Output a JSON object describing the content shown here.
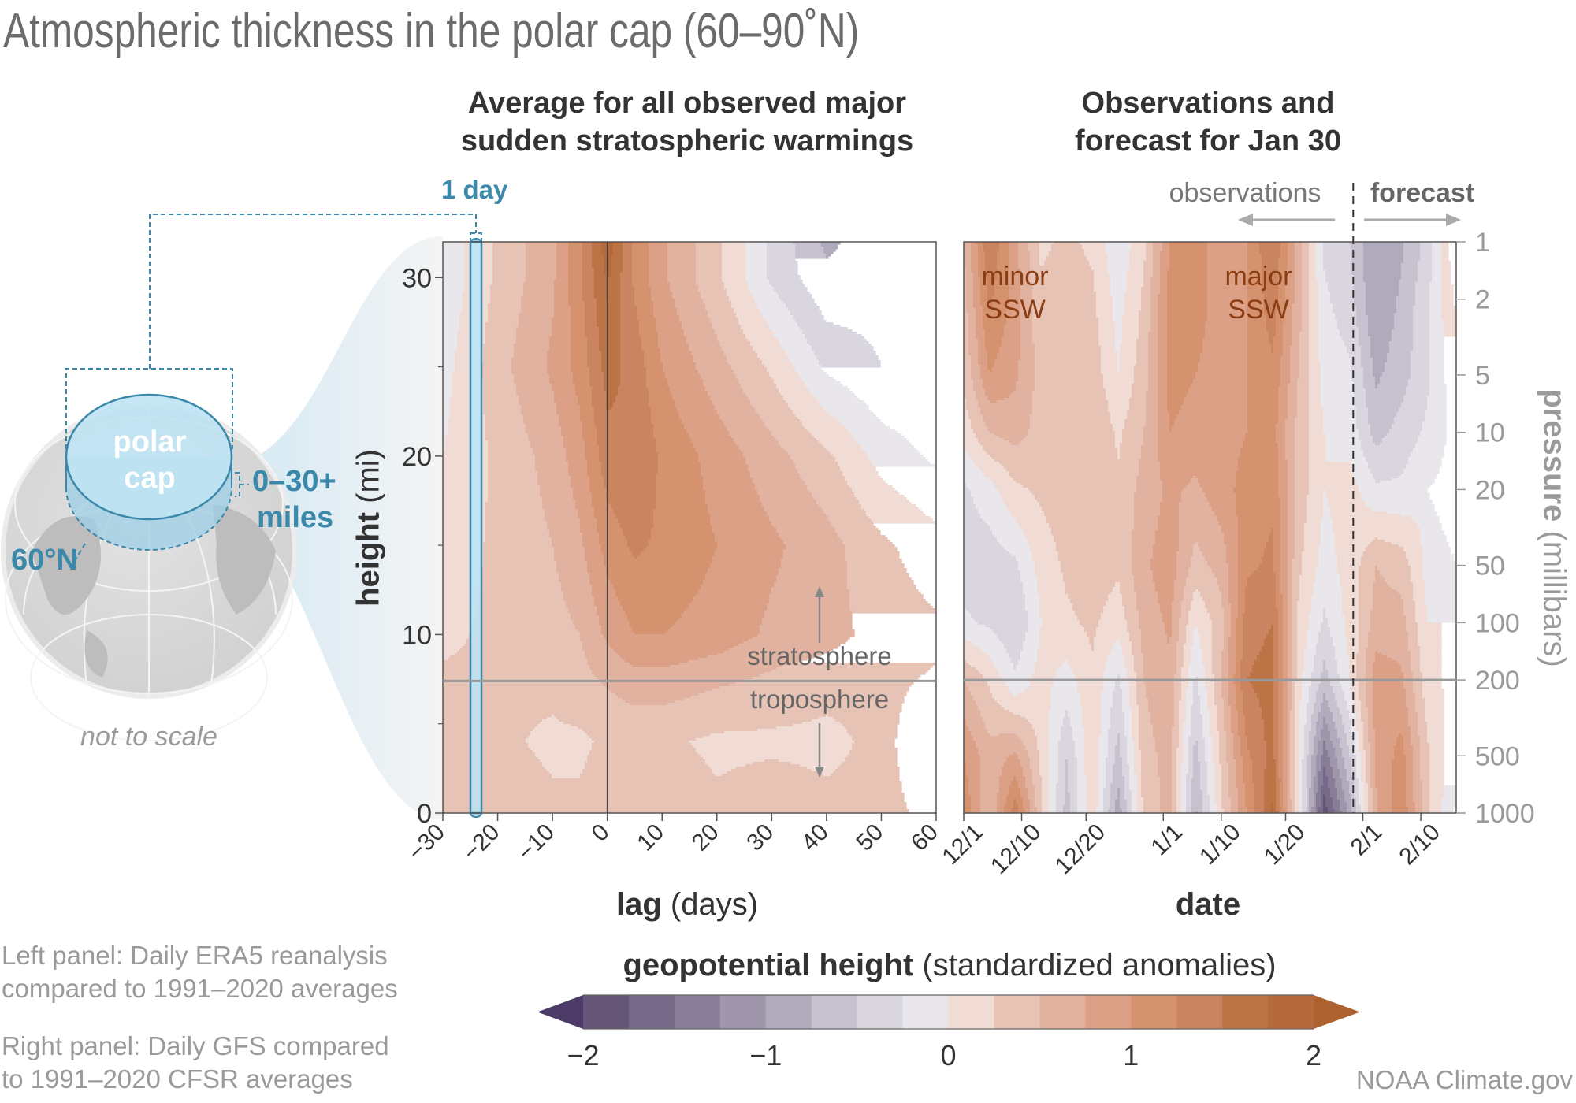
{
  "title": "Atmospheric thickness in the polar cap (60–90˚N)",
  "left_panel_title": [
    "Average for all observed major",
    "sudden stratospheric warmings"
  ],
  "right_panel_title": [
    "Observations and",
    "forecast for Jan 30"
  ],
  "diagram": {
    "one_day": "1 day",
    "polar_cap": [
      "polar",
      "cap"
    ],
    "height_range": [
      "0–30+",
      "miles"
    ],
    "latitude": "60°N",
    "not_to_scale": "not to scale"
  },
  "annotations": {
    "observations": "observations",
    "forecast": "forecast",
    "stratosphere": "stratosphere",
    "troposphere": "troposphere",
    "minor_ssw": [
      "minor",
      "SSW"
    ],
    "major_ssw": [
      "major",
      "SSW"
    ]
  },
  "footnotes": {
    "left": [
      "Left panel: Daily ERA5 reanalysis",
      "compared to 1991–2020 averages"
    ],
    "right": [
      "Right panel: Daily GFS compared",
      "to 1991–2020 CFSR averages"
    ],
    "credit": "NOAA Climate.gov"
  },
  "colorbar": {
    "title_bold": "geopotential height",
    "title_rest": " (standardized anomalies)",
    "ticks": [
      "−2",
      "−1",
      "0",
      "1",
      "2"
    ],
    "tick_values": [
      -2,
      -1,
      0,
      1,
      2
    ],
    "range": [
      -2,
      2
    ],
    "step": 0.25,
    "colors": [
      "#655577",
      "#766a88",
      "#877d97",
      "#9f96ab",
      "#b0aabd",
      "#c8c1cf",
      "#d9d6e0",
      "#e9e7ec",
      "#f0dcd5",
      "#e6c3b5",
      "#e0b29f",
      "#dba086",
      "#d5926f",
      "#ca8560",
      "#bc7346",
      "#b66a3b"
    ],
    "under_color": "#4b3b66",
    "over_color": "#ad6230"
  },
  "chart_data": [
    {
      "type": "heatmap",
      "title": "Average for all observed major sudden stratospheric warmings",
      "xlabel_bold": "lag",
      "xlabel_rest": " (days)",
      "ylabel_bold": "height",
      "ylabel_rest": " (mi)",
      "xlim": [
        -30,
        60
      ],
      "ylim": [
        0,
        32
      ],
      "xticks": [
        -30,
        -20,
        -10,
        0,
        10,
        20,
        30,
        40,
        50,
        60
      ],
      "xtick_labels": [
        "−30",
        "−20",
        "−10",
        "0",
        "10",
        "20",
        "30",
        "40",
        "50",
        "60"
      ],
      "yticks": [
        0,
        10,
        20,
        30
      ],
      "ytick_labels": [
        "0",
        "10",
        "20",
        "30"
      ],
      "tropopause_height": 7.4,
      "x": [
        -30,
        -20,
        -10,
        -5,
        0,
        5,
        10,
        20,
        30,
        40,
        50,
        60
      ],
      "y": [
        0,
        4,
        7,
        10,
        15,
        20,
        25,
        30,
        32
      ],
      "z": [
        [
          0.5,
          0.4,
          0.3,
          0.3,
          0.4,
          0.4,
          0.4,
          0.3,
          0.4,
          0.3,
          0.3,
          0.2
        ],
        [
          0.3,
          0.3,
          0.2,
          0.2,
          0.3,
          0.3,
          0.3,
          0.2,
          0.2,
          0.2,
          0.3,
          0.1
        ],
        [
          0.3,
          0.3,
          0.3,
          0.4,
          0.5,
          0.6,
          0.6,
          0.5,
          0.4,
          0.3,
          0.3,
          0.2
        ],
        [
          0.2,
          0.3,
          0.4,
          0.5,
          0.8,
          1.0,
          1.0,
          0.9,
          0.7,
          0.6,
          0.4,
          0.3
        ],
        [
          0.1,
          0.3,
          0.5,
          0.7,
          1.1,
          1.3,
          1.2,
          1.0,
          0.8,
          0.6,
          0.3,
          0.1
        ],
        [
          0.0,
          0.3,
          0.6,
          0.9,
          1.4,
          1.5,
          1.2,
          0.9,
          0.6,
          0.3,
          -0.1,
          -0.3
        ],
        [
          -0.1,
          0.4,
          0.8,
          1.1,
          1.6,
          1.4,
          1.0,
          0.6,
          0.2,
          -0.3,
          -0.5,
          -0.5
        ],
        [
          -0.2,
          0.3,
          0.7,
          1.2,
          1.8,
          1.2,
          0.8,
          0.3,
          -0.3,
          -0.7,
          -0.6,
          -0.5
        ],
        [
          -0.2,
          0.3,
          0.7,
          1.2,
          1.9,
          1.2,
          0.8,
          0.3,
          -0.3,
          -0.8,
          -0.6,
          -0.5
        ]
      ]
    },
    {
      "type": "heatmap",
      "title": "Observations and forecast for Jan 30",
      "xlabel_bold": "date",
      "ylabel": "pressure (millibars)",
      "ylabel_bold": "pressure",
      "ylabel_rest": " (millibars)",
      "x_units": "days since 12/1",
      "xlim": [
        0,
        76.5
      ],
      "ylim": [
        1000,
        1
      ],
      "y_scale": "log",
      "xticks": [
        0,
        9,
        19,
        31,
        40,
        50,
        62,
        71
      ],
      "xtick_labels": [
        "12/1",
        "12/10",
        "12/20",
        "1/1",
        "1/10",
        "1/20",
        "2/1",
        "2/10"
      ],
      "yticks": [
        1,
        2,
        5,
        10,
        20,
        50,
        100,
        200,
        500,
        1000
      ],
      "ytick_labels": [
        "1",
        "2",
        "5",
        "10",
        "20",
        "50",
        "100",
        "200",
        "500",
        "1000"
      ],
      "tropopause_pressure": 200,
      "forecast_start": 60.5,
      "x": [
        0,
        4,
        8,
        12,
        16,
        20,
        24,
        28,
        32,
        36,
        40,
        44,
        48,
        52,
        56,
        60,
        64,
        68,
        72,
        76.5
      ],
      "y": [
        1,
        2,
        5,
        10,
        20,
        50,
        100,
        200,
        500,
        1000
      ],
      "z": [
        [
          0.5,
          1.5,
          0.8,
          0.2,
          0.3,
          0.2,
          -0.2,
          0.2,
          1.0,
          1.2,
          0.8,
          1.0,
          1.5,
          0.6,
          -0.3,
          -0.5,
          -1.0,
          -0.8,
          -0.4,
          0.5
        ],
        [
          0.4,
          1.3,
          0.9,
          0.3,
          0.4,
          0.3,
          -0.1,
          0.3,
          1.1,
          1.1,
          0.9,
          1.0,
          1.4,
          0.6,
          -0.2,
          -0.4,
          -1.0,
          -0.7,
          -0.3,
          0.3
        ],
        [
          0.3,
          1.0,
          0.8,
          0.4,
          0.5,
          0.4,
          0.0,
          0.4,
          1.1,
          1.0,
          0.9,
          1.0,
          1.2,
          0.5,
          -0.1,
          -0.2,
          -0.8,
          -0.6,
          -0.3,
          0.2
        ],
        [
          0.1,
          0.5,
          0.6,
          0.4,
          0.5,
          0.5,
          0.2,
          0.5,
          1.0,
          0.9,
          0.9,
          1.0,
          1.1,
          0.4,
          0.0,
          -0.1,
          -0.6,
          -0.4,
          -0.2,
          0.1
        ],
        [
          -0.3,
          -0.1,
          0.2,
          0.3,
          0.4,
          0.5,
          0.3,
          0.6,
          0.8,
          0.7,
          0.9,
          1.1,
          1.2,
          0.4,
          0.0,
          0.1,
          -0.2,
          -0.2,
          0.0,
          0.1
        ],
        [
          -0.4,
          -0.4,
          -0.3,
          0.1,
          0.3,
          0.4,
          0.3,
          0.7,
          0.9,
          0.4,
          0.6,
          1.2,
          1.3,
          0.3,
          -0.1,
          0.1,
          0.5,
          0.4,
          -0.1,
          0.0
        ],
        [
          -0.2,
          -0.3,
          -0.5,
          0.0,
          0.2,
          0.3,
          0.1,
          0.6,
          0.8,
          0.0,
          0.4,
          1.4,
          1.5,
          0.2,
          -0.3,
          0.1,
          0.6,
          0.6,
          0.0,
          0.0
        ],
        [
          0.5,
          0.2,
          -0.2,
          0.1,
          -0.1,
          0.2,
          -0.3,
          0.5,
          0.7,
          -0.3,
          0.5,
          1.5,
          1.6,
          0.1,
          -0.6,
          0.0,
          0.9,
          0.8,
          0.1,
          -0.1
        ],
        [
          1.0,
          0.6,
          0.8,
          0.2,
          -0.5,
          0.2,
          -0.6,
          0.4,
          0.6,
          -0.6,
          0.3,
          1.2,
          1.6,
          0.0,
          -1.4,
          -0.5,
          0.8,
          1.1,
          0.3,
          -0.2
        ],
        [
          1.2,
          0.5,
          1.4,
          0.3,
          -0.6,
          0.2,
          -0.9,
          0.3,
          0.6,
          -0.8,
          0.2,
          1.0,
          1.8,
          0.0,
          -1.9,
          -0.9,
          0.7,
          1.2,
          0.3,
          -0.3
        ]
      ]
    }
  ]
}
